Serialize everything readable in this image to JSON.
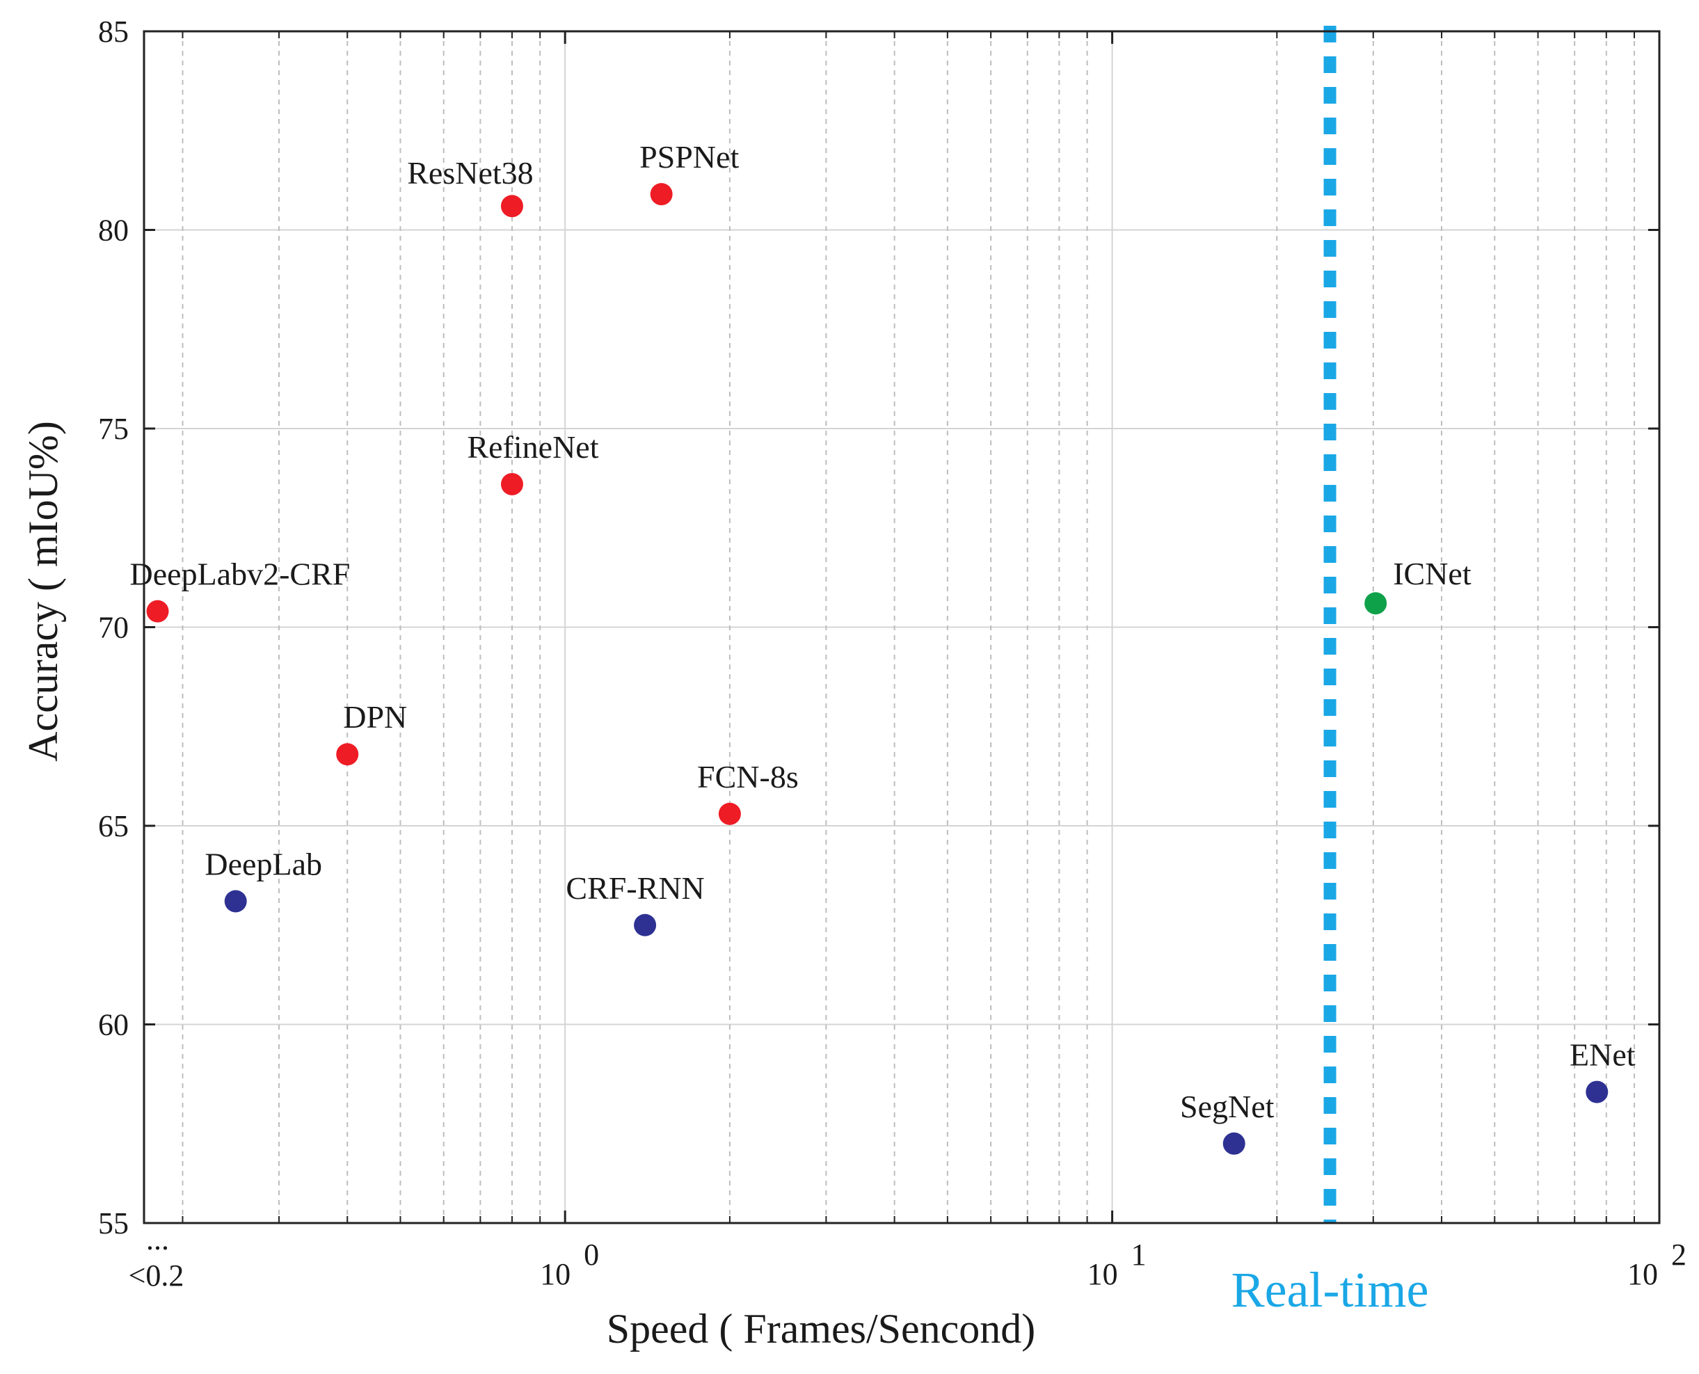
{
  "chart_data": {
    "type": "scatter",
    "title": "",
    "xlabel": "Speed ( Frames/Sencond)",
    "ylabel": "Accuracy ( mIoU%)",
    "xscale": "log",
    "xlim": [
      0.17,
      100
    ],
    "ylim": [
      55,
      85
    ],
    "grid": true,
    "yticks": [
      55,
      60,
      65,
      70,
      75,
      80,
      85
    ],
    "ytick_labels": [
      "55",
      "60",
      "65",
      "70",
      "75",
      "80",
      "85"
    ],
    "xtick_labels": [
      {
        "value": 0.2,
        "base": "<0.2",
        "exp": ""
      },
      {
        "value": 1,
        "base": "10",
        "exp": "0"
      },
      {
        "value": 10,
        "base": "10",
        "exp": "1"
      },
      {
        "value": 100,
        "base": "10",
        "exp": "2"
      }
    ],
    "axis_break_marker": "...",
    "realtime": {
      "x": 25,
      "label": "Real-time",
      "color": "#1aa7e6"
    },
    "colors": {
      "slow": "#ee1c25",
      "fast-low": "#2e3192",
      "ours": "#0fa14a"
    },
    "points": [
      {
        "name": "ResNet38",
        "x": 0.8,
        "y": 80.6,
        "group": "slow"
      },
      {
        "name": "PSPNet",
        "x": 1.5,
        "y": 80.9,
        "group": "slow"
      },
      {
        "name": "RefineNet",
        "x": 0.8,
        "y": 73.6,
        "group": "slow"
      },
      {
        "name": "DeepLabv2-CRF",
        "x": 0.18,
        "y": 70.4,
        "group": "slow"
      },
      {
        "name": "DPN",
        "x": 0.4,
        "y": 66.8,
        "group": "slow"
      },
      {
        "name": "FCN-8s",
        "x": 2.0,
        "y": 65.3,
        "group": "slow"
      },
      {
        "name": "DeepLab",
        "x": 0.25,
        "y": 63.1,
        "group": "fast-low"
      },
      {
        "name": "CRF-RNN",
        "x": 1.4,
        "y": 62.5,
        "group": "fast-low"
      },
      {
        "name": "SegNet",
        "x": 16.7,
        "y": 57.0,
        "group": "fast-low"
      },
      {
        "name": "ENet",
        "x": 76.9,
        "y": 58.3,
        "group": "fast-low"
      },
      {
        "name": "ICNet",
        "x": 30.3,
        "y": 70.6,
        "group": "ours"
      }
    ]
  }
}
